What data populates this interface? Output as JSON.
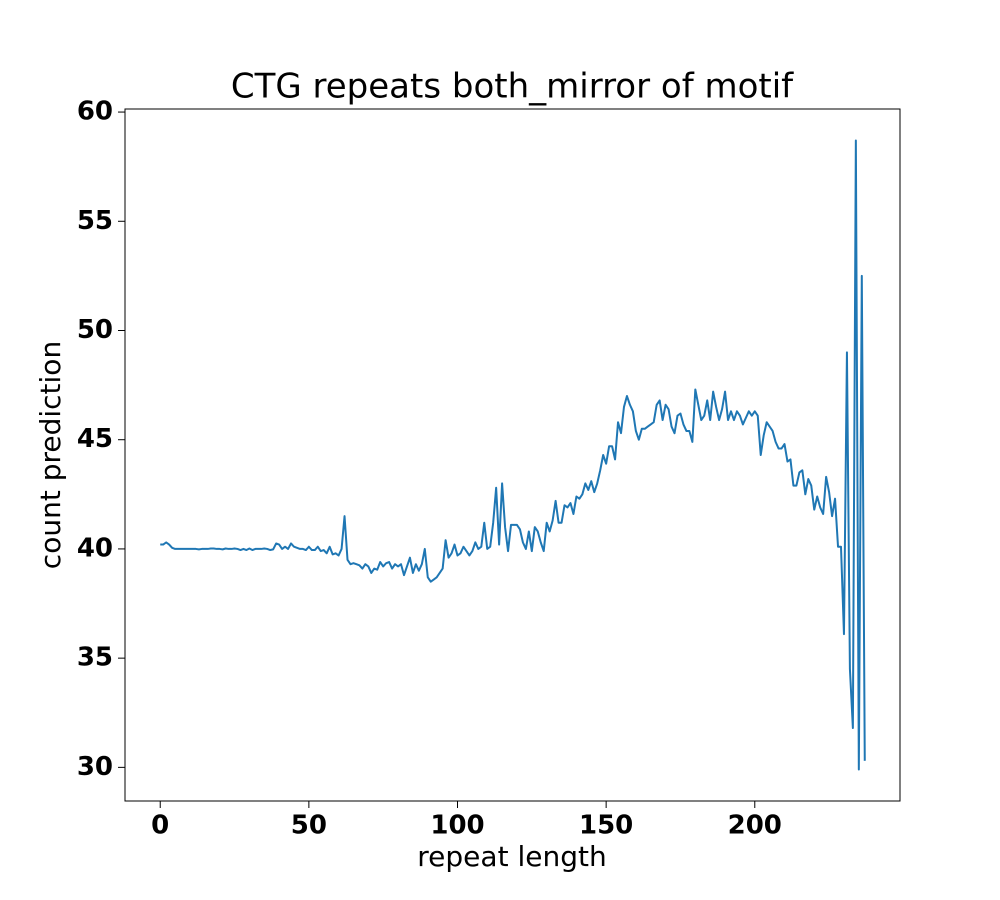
{
  "chart_data": {
    "type": "line",
    "title": "CTG repeats both_mirror of motif",
    "xlabel": "repeat length",
    "ylabel": "count prediction",
    "color": "#1f77b4",
    "x": [
      0,
      1,
      2,
      3,
      4,
      5,
      6,
      7,
      8,
      9,
      10,
      11,
      12,
      13,
      14,
      15,
      16,
      17,
      18,
      19,
      20,
      21,
      22,
      23,
      24,
      25,
      26,
      27,
      28,
      29,
      30,
      31,
      32,
      33,
      34,
      35,
      36,
      37,
      38,
      39,
      40,
      41,
      42,
      43,
      44,
      45,
      46,
      47,
      48,
      49,
      50,
      51,
      52,
      53,
      54,
      55,
      56,
      57,
      58,
      59,
      60,
      61,
      62,
      63,
      64,
      65,
      66,
      67,
      68,
      69,
      70,
      71,
      72,
      73,
      74,
      75,
      76,
      77,
      78,
      79,
      80,
      81,
      82,
      83,
      84,
      85,
      86,
      87,
      88,
      89,
      90,
      91,
      92,
      93,
      94,
      95,
      96,
      97,
      98,
      99,
      100,
      101,
      102,
      103,
      104,
      105,
      106,
      107,
      108,
      109,
      110,
      111,
      112,
      113,
      114,
      115,
      116,
      117,
      118,
      119,
      120,
      121,
      122,
      123,
      124,
      125,
      126,
      127,
      128,
      129,
      130,
      131,
      132,
      133,
      134,
      135,
      136,
      137,
      138,
      139,
      140,
      141,
      142,
      143,
      144,
      145,
      146,
      147,
      148,
      149,
      150,
      151,
      152,
      153,
      154,
      155,
      156,
      157,
      158,
      159,
      160,
      161,
      162,
      163,
      164,
      165,
      166,
      167,
      168,
      169,
      170,
      171,
      172,
      173,
      174,
      175,
      176,
      177,
      178,
      179,
      180,
      181,
      182,
      183,
      184,
      185,
      186,
      187,
      188,
      189,
      190,
      191,
      192,
      193,
      194,
      195,
      196,
      197,
      198,
      199,
      200,
      201,
      202,
      203,
      204,
      205,
      206,
      207,
      208,
      209,
      210,
      211,
      212,
      213,
      214,
      215,
      216,
      217,
      218,
      219,
      220,
      221,
      222,
      223,
      224,
      225,
      226,
      227,
      228,
      229,
      230,
      231,
      232,
      233,
      234,
      235,
      236,
      237
    ],
    "values": [
      40.2,
      40.2,
      40.3,
      40.2,
      40.05,
      40.0,
      40.0,
      40.0,
      40.0,
      40.0,
      40.0,
      40.0,
      40.0,
      39.98,
      40.0,
      40.0,
      40.0,
      40.02,
      40.02,
      40.0,
      40.0,
      39.98,
      40.02,
      40.0,
      40.0,
      40.02,
      40.0,
      39.95,
      40.0,
      39.95,
      40.02,
      39.95,
      40.0,
      40.0,
      40.0,
      40.02,
      40.0,
      39.95,
      39.98,
      40.25,
      40.2,
      40.0,
      40.1,
      40.0,
      40.25,
      40.1,
      40.05,
      40.0,
      40.0,
      39.95,
      40.1,
      39.95,
      39.95,
      40.1,
      39.9,
      39.95,
      39.8,
      40.1,
      39.75,
      39.8,
      39.7,
      40.0,
      41.5,
      39.5,
      39.3,
      39.35,
      39.3,
      39.25,
      39.1,
      39.3,
      39.2,
      38.9,
      39.1,
      39.05,
      39.4,
      39.2,
      39.35,
      39.4,
      39.1,
      39.3,
      39.2,
      39.3,
      38.8,
      39.2,
      39.6,
      38.9,
      39.3,
      39.0,
      39.3,
      40.0,
      38.7,
      38.5,
      38.6,
      38.7,
      38.9,
      39.1,
      40.4,
      39.6,
      39.8,
      40.2,
      39.7,
      39.8,
      40.1,
      39.9,
      39.7,
      39.9,
      40.3,
      40.0,
      40.1,
      41.2,
      40.0,
      40.1,
      41.2,
      42.8,
      40.2,
      43.0,
      41.0,
      39.9,
      41.1,
      41.1,
      41.1,
      40.9,
      40.3,
      40.0,
      40.8,
      39.9,
      41.0,
      40.8,
      40.3,
      39.9,
      41.2,
      40.8,
      41.3,
      42.2,
      41.2,
      41.2,
      42.0,
      41.9,
      42.1,
      41.6,
      42.4,
      42.3,
      42.5,
      43.0,
      42.7,
      43.1,
      42.6,
      43.0,
      43.6,
      44.3,
      43.9,
      44.7,
      44.7,
      44.1,
      45.8,
      45.3,
      46.5,
      47.0,
      46.6,
      46.3,
      45.4,
      45.0,
      45.5,
      45.5,
      45.6,
      45.7,
      45.8,
      46.6,
      46.8,
      45.9,
      46.6,
      46.4,
      45.6,
      45.3,
      46.1,
      46.2,
      45.7,
      45.4,
      45.4,
      44.9,
      47.3,
      46.6,
      45.9,
      46.1,
      46.8,
      45.9,
      47.2,
      46.5,
      45.9,
      46.4,
      47.2,
      45.9,
      46.3,
      45.9,
      46.3,
      46.1,
      45.7,
      46.0,
      46.3,
      46.1,
      46.3,
      46.1,
      44.3,
      45.2,
      45.8,
      45.6,
      45.4,
      44.9,
      44.6,
      44.6,
      44.8,
      44.0,
      44.1,
      42.9,
      42.9,
      43.5,
      43.6,
      42.5,
      43.2,
      42.9,
      41.8,
      42.4,
      41.9,
      41.6,
      43.3,
      42.6,
      41.5,
      42.3,
      40.1,
      40.1,
      36.1,
      49.0,
      34.5,
      31.8,
      58.7,
      29.9,
      52.5,
      30.3
    ],
    "xlim": [
      -11.85,
      248.85
    ],
    "ylim": [
      28.46,
      60.14
    ],
    "xticks": [
      0,
      50,
      100,
      150,
      200
    ],
    "yticks": [
      30,
      35,
      40,
      45,
      50,
      55,
      60
    ]
  }
}
